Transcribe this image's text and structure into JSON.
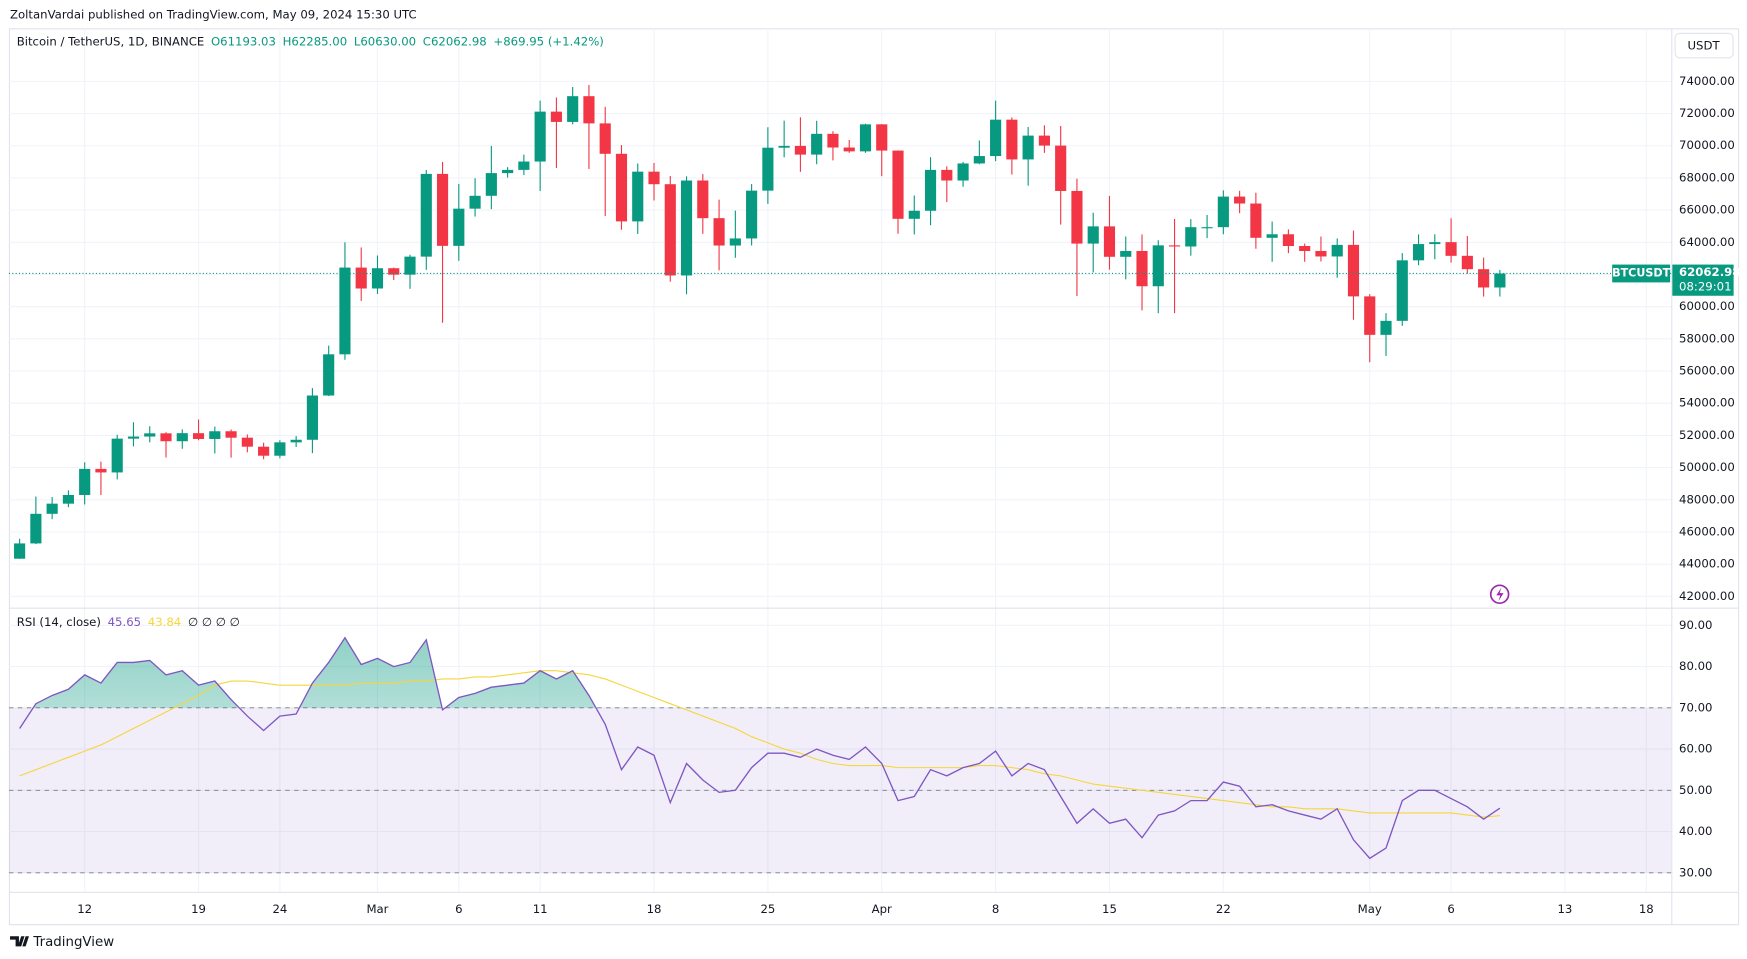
{
  "header": {
    "publisher": "ZoltanVardai published on TradingView.com, May 09, 2024 15:30 UTC",
    "footer": "TradingView"
  },
  "chart_data": [
    {
      "type": "candlestick",
      "title": "Bitcoin / TetherUS, 1D, BINANCE",
      "legend": {
        "open": "O61193.03",
        "high": "H62285.00",
        "low": "L60630.00",
        "close": "C62062.98",
        "change": "+869.95 (+1.42%)"
      },
      "currency": "USDT",
      "symbol": "BTCUSDT",
      "countdown": "08:29:01",
      "up_color": "#089981",
      "down_color": "#f23645",
      "x": [
        "2024-02-08",
        "2024-02-09",
        "2024-02-10",
        "2024-02-11",
        "2024-02-12",
        "2024-02-13",
        "2024-02-14",
        "2024-02-15",
        "2024-02-16",
        "2024-02-17",
        "2024-02-18",
        "2024-02-19",
        "2024-02-20",
        "2024-02-21",
        "2024-02-22",
        "2024-02-23",
        "2024-02-24",
        "2024-02-25",
        "2024-02-26",
        "2024-02-27",
        "2024-02-28",
        "2024-02-29",
        "2024-03-01",
        "2024-03-02",
        "2024-03-03",
        "2024-03-04",
        "2024-03-05",
        "2024-03-06",
        "2024-03-07",
        "2024-03-08",
        "2024-03-09",
        "2024-03-10",
        "2024-03-11",
        "2024-03-12",
        "2024-03-13",
        "2024-03-14",
        "2024-03-15",
        "2024-03-16",
        "2024-03-17",
        "2024-03-18",
        "2024-03-19",
        "2024-03-20",
        "2024-03-21",
        "2024-03-22",
        "2024-03-23",
        "2024-03-24",
        "2024-03-25",
        "2024-03-26",
        "2024-03-27",
        "2024-03-28",
        "2024-03-29",
        "2024-03-30",
        "2024-03-31",
        "2024-04-01",
        "2024-04-02",
        "2024-04-03",
        "2024-04-04",
        "2024-04-05",
        "2024-04-06",
        "2024-04-07",
        "2024-04-08",
        "2024-04-09",
        "2024-04-10",
        "2024-04-11",
        "2024-04-12",
        "2024-04-13",
        "2024-04-14",
        "2024-04-15",
        "2024-04-16",
        "2024-04-17",
        "2024-04-18",
        "2024-04-19",
        "2024-04-20",
        "2024-04-21",
        "2024-04-22",
        "2024-04-23",
        "2024-04-24",
        "2024-04-25",
        "2024-04-26",
        "2024-04-27",
        "2024-04-28",
        "2024-04-29",
        "2024-04-30",
        "2024-05-01",
        "2024-05-02",
        "2024-05-03",
        "2024-05-04",
        "2024-05-05",
        "2024-05-06",
        "2024-05-07",
        "2024-05-08",
        "2024-05-09"
      ],
      "open": [
        44340,
        45290,
        47130,
        47760,
        48300,
        49920,
        49700,
        51800,
        51930,
        52130,
        51640,
        52140,
        51780,
        52260,
        51860,
        51300,
        50740,
        51570,
        51730,
        54480,
        57040,
        62430,
        61130,
        62390,
        61990,
        63110,
        68250,
        63780,
        66090,
        66890,
        68300,
        68500,
        69020,
        72120,
        71480,
        73080,
        71390,
        69500,
        65300,
        68390,
        67610,
        61940,
        67840,
        65500,
        63800,
        64240,
        67210,
        69880,
        69990,
        69450,
        70740,
        69890,
        69650,
        71330,
        69700,
        65460,
        65960,
        68500,
        67840,
        68900,
        69360,
        71620,
        69150,
        70630,
        70010,
        67190,
        63920,
        64990,
        63100,
        63460,
        61270,
        63810,
        63740,
        64940,
        64940,
        66840,
        66410,
        64280,
        64500,
        63770,
        63460,
        63120,
        63840,
        60640,
        58250,
        59120,
        62880,
        63890,
        64010,
        63160,
        62330,
        61193.03
      ],
      "high": [
        45580,
        48200,
        48170,
        48590,
        50330,
        50370,
        52040,
        52820,
        52570,
        52200,
        52380,
        52990,
        52550,
        52370,
        52060,
        51550,
        51700,
        51960,
        54940,
        57580,
        64000,
        63680,
        63180,
        62430,
        63230,
        68500,
        69000,
        67630,
        67980,
        69990,
        68670,
        69450,
        72800,
        73000,
        73650,
        73777,
        72420,
        70040,
        68900,
        68930,
        68120,
        68100,
        68240,
        66650,
        65970,
        67620,
        71150,
        71560,
        71770,
        71550,
        70900,
        70360,
        71370,
        71340,
        69710,
        66910,
        69290,
        68720,
        69000,
        70330,
        72800,
        71760,
        71170,
        71270,
        71230,
        67950,
        65840,
        66880,
        64360,
        64490,
        64130,
        65450,
        65440,
        65700,
        67230,
        67200,
        67080,
        65290,
        64800,
        63920,
        64360,
        64240,
        64730,
        60780,
        59600,
        63330,
        64490,
        64500,
        65490,
        64390,
        63050,
        62285
      ],
      "low": [
        44330,
        45250,
        46800,
        47540,
        47710,
        48300,
        49270,
        51320,
        51570,
        50630,
        51170,
        51700,
        50880,
        50620,
        50950,
        50520,
        50580,
        51280,
        50900,
        54450,
        56700,
        60360,
        60790,
        61660,
        61110,
        62290,
        59005,
        62850,
        65600,
        66060,
        68020,
        68180,
        67190,
        68620,
        71330,
        68555,
        65630,
        64780,
        64520,
        66600,
        61550,
        60770,
        64530,
        62260,
        63040,
        63800,
        66390,
        69280,
        68380,
        68850,
        69090,
        69560,
        69560,
        68110,
        64530,
        64490,
        65060,
        66500,
        67450,
        68850,
        69040,
        68210,
        67520,
        69560,
        65100,
        60660,
        62130,
        62300,
        61700,
        59770,
        59600,
        59600,
        63170,
        64260,
        64500,
        65810,
        63600,
        62790,
        63330,
        62790,
        62810,
        61800,
        59190,
        56552,
        56940,
        58810,
        62580,
        62950,
        62740,
        62050,
        60630,
        60630
      ],
      "close": [
        45290,
        47130,
        47760,
        48300,
        49920,
        49700,
        51800,
        51930,
        52130,
        51640,
        52140,
        51780,
        52260,
        51860,
        51300,
        50740,
        51570,
        51730,
        54480,
        57040,
        62430,
        61130,
        62390,
        61990,
        63110,
        68250,
        63780,
        66090,
        66890,
        68300,
        68500,
        69020,
        72120,
        71480,
        73080,
        71390,
        69500,
        65300,
        68390,
        67610,
        61940,
        67840,
        65500,
        63800,
        64240,
        67210,
        69880,
        69990,
        69450,
        70740,
        69890,
        69650,
        71330,
        69700,
        65460,
        65960,
        68500,
        67840,
        68900,
        69360,
        71620,
        69150,
        70630,
        70010,
        67190,
        63920,
        64990,
        63100,
        63460,
        61270,
        63810,
        63740,
        64940,
        64940,
        66840,
        66410,
        64280,
        64500,
        63770,
        63460,
        63120,
        63840,
        60640,
        58250,
        59120,
        62880,
        63890,
        64010,
        63160,
        62330,
        61193.03,
        62062.98
      ],
      "ylim": [
        41300,
        77300
      ],
      "yticks": [
        {
          "value": 42000,
          "label": "42000.00"
        },
        {
          "value": 44000,
          "label": "44000.00"
        },
        {
          "value": 46000,
          "label": "46000.00"
        },
        {
          "value": 48000,
          "label": "48000.00"
        },
        {
          "value": 50000,
          "label": "50000.00"
        },
        {
          "value": 52000,
          "label": "52000.00"
        },
        {
          "value": 54000,
          "label": "54000.00"
        },
        {
          "value": 56000,
          "label": "56000.00"
        },
        {
          "value": 58000,
          "label": "58000.00"
        },
        {
          "value": 60000,
          "label": "60000.00"
        },
        {
          "value": 62000,
          "label": "62000.00"
        },
        {
          "value": 64000,
          "label": "64000.00"
        },
        {
          "value": 66000,
          "label": "66000.00"
        },
        {
          "value": 68000,
          "label": "68000.00"
        },
        {
          "value": 70000,
          "label": "70000.00"
        },
        {
          "value": 72000,
          "label": "72000.00"
        },
        {
          "value": 74000,
          "label": "74000.00"
        }
      ],
      "xticks": [
        {
          "value": "2024-02-12",
          "label": "12"
        },
        {
          "value": "2024-02-19",
          "label": "19"
        },
        {
          "value": "2024-02-24",
          "label": "24"
        },
        {
          "value": "2024-03-01",
          "label": "Mar"
        },
        {
          "value": "2024-03-06",
          "label": "6"
        },
        {
          "value": "2024-03-11",
          "label": "11"
        },
        {
          "value": "2024-03-18",
          "label": "18"
        },
        {
          "value": "2024-03-25",
          "label": "25"
        },
        {
          "value": "2024-04-01",
          "label": "Apr"
        },
        {
          "value": "2024-04-08",
          "label": "8"
        },
        {
          "value": "2024-04-15",
          "label": "15"
        },
        {
          "value": "2024-04-22",
          "label": "22"
        },
        {
          "value": "2024-05-01",
          "label": "May"
        },
        {
          "value": "2024-05-06",
          "label": "6"
        },
        {
          "value": "2024-05-13",
          "label": "13"
        },
        {
          "value": "2024-05-18",
          "label": "18"
        }
      ],
      "grid": true
    },
    {
      "type": "line",
      "title": "RSI (14, close)",
      "legend_values": [
        "45.65",
        "43.84"
      ],
      "legend_extra": "∅ ∅ ∅ ∅",
      "series": [
        {
          "color": "#7e57c2",
          "values": [
            65,
            71,
            73,
            74.5,
            78,
            76,
            81,
            81,
            81.5,
            78,
            79,
            75.5,
            76.5,
            72,
            68,
            64.5,
            68,
            68.5,
            76,
            81,
            87,
            80.5,
            82,
            80,
            81,
            86.5,
            69.5,
            72.5,
            73.5,
            75,
            75.5,
            76,
            79,
            77,
            79,
            73,
            66,
            55,
            60.5,
            58.5,
            47,
            56.5,
            52.5,
            49.5,
            50,
            55.5,
            59,
            59,
            58,
            60,
            58.5,
            57.5,
            60.5,
            56.5,
            47.5,
            48.5,
            55,
            53.5,
            55.5,
            56.5,
            59.5,
            53.5,
            56.5,
            55,
            48.5,
            42,
            45.5,
            42,
            43,
            38.5,
            44,
            45,
            47.5,
            47.5,
            52,
            51,
            46,
            46.5,
            45,
            44,
            43,
            45.5,
            38,
            33.5,
            36,
            47.5,
            50,
            50,
            48,
            46,
            43,
            45.65
          ]
        },
        {
          "color": "#f5d63d",
          "values": [
            53.5,
            55,
            56.5,
            58,
            59.5,
            61,
            63,
            65,
            67,
            69,
            71,
            73,
            75.5,
            76.5,
            76.5,
            76,
            75.5,
            75.5,
            75.5,
            75.5,
            75.5,
            76,
            76,
            76,
            76.5,
            76.5,
            77,
            77,
            77.5,
            77.5,
            78,
            78.5,
            79,
            79,
            78.5,
            78,
            77,
            75.5,
            74,
            72.5,
            71,
            69.5,
            68,
            66.5,
            65,
            63,
            61.5,
            60,
            59,
            57.5,
            56.5,
            56,
            56,
            56,
            55.5,
            55.5,
            55.5,
            55.5,
            55.5,
            56,
            56,
            55.5,
            55,
            54,
            53.5,
            52.5,
            51.5,
            51,
            50.5,
            50,
            49.5,
            49,
            48.5,
            48,
            47.5,
            47,
            46.5,
            46,
            46,
            45.5,
            45.5,
            45.5,
            45,
            44.5,
            44.5,
            44.5,
            44.5,
            44.5,
            44.5,
            44,
            43.5,
            43.84
          ]
        }
      ],
      "bands": {
        "upper": 70,
        "middle": 50,
        "lower": 30,
        "color": "#7e57c2",
        "fill_above": "#089981"
      },
      "ylim": [
        25.4,
        94.3
      ],
      "yticks": [
        {
          "value": 30,
          "label": "30.00"
        },
        {
          "value": 40,
          "label": "40.00"
        },
        {
          "value": 50,
          "label": "50.00"
        },
        {
          "value": 60,
          "label": "60.00"
        },
        {
          "value": 70,
          "label": "70.00"
        },
        {
          "value": 80,
          "label": "80.00"
        },
        {
          "value": 90,
          "label": "90.00"
        }
      ],
      "grid": true
    }
  ]
}
